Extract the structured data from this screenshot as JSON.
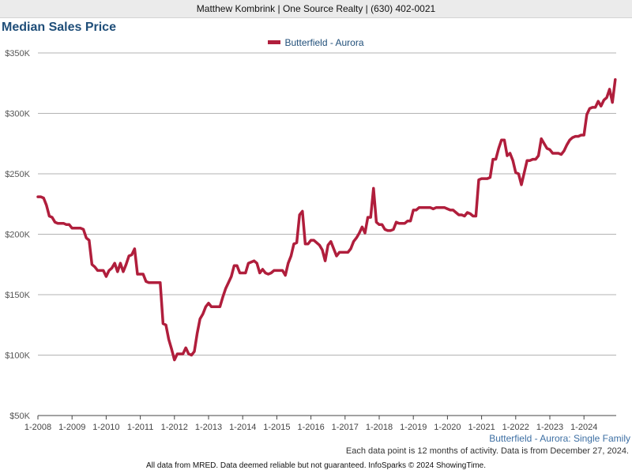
{
  "header": {
    "text": "Matthew Kombrink | One Source Realty | (630) 402-0021"
  },
  "chart_data": {
    "type": "line",
    "title": "Median Sales Price",
    "legend_position": "top-center",
    "grid": true,
    "ylim": [
      50000,
      350000
    ],
    "y_ticks": [
      {
        "value": 50000,
        "label": "$50K"
      },
      {
        "value": 100000,
        "label": "$100K"
      },
      {
        "value": 150000,
        "label": "$150K"
      },
      {
        "value": 200000,
        "label": "$200K"
      },
      {
        "value": 250000,
        "label": "$250K"
      },
      {
        "value": 300000,
        "label": "$300K"
      },
      {
        "value": 350000,
        "label": "$350K"
      }
    ],
    "x_ticks": [
      "1-2008",
      "1-2009",
      "1-2010",
      "1-2011",
      "1-2012",
      "1-2013",
      "1-2014",
      "1-2015",
      "1-2016",
      "1-2017",
      "1-2018",
      "1-2019",
      "1-2020",
      "1-2021",
      "1-2022",
      "1-2023",
      "1-2024"
    ],
    "x_start": "1-2008",
    "series": [
      {
        "name": "Butterfield - Aurora",
        "color": "#b01e3c",
        "values": [
          231000,
          231000,
          230000,
          224000,
          215000,
          214000,
          210000,
          209000,
          209000,
          209000,
          208000,
          208000,
          205000,
          205000,
          205000,
          205000,
          204000,
          197000,
          195000,
          175000,
          173000,
          170000,
          170000,
          170000,
          165000,
          170000,
          172000,
          176000,
          169000,
          176000,
          169000,
          175000,
          182000,
          183000,
          188000,
          167000,
          167000,
          167000,
          161000,
          160000,
          160000,
          160000,
          160000,
          160000,
          126000,
          125000,
          113000,
          105000,
          96000,
          101000,
          101000,
          101000,
          106000,
          101000,
          100000,
          103000,
          118000,
          130000,
          134000,
          140000,
          143000,
          140000,
          140000,
          140000,
          140000,
          148000,
          155000,
          160000,
          165000,
          174000,
          174000,
          168000,
          168000,
          168000,
          176000,
          177000,
          178000,
          176000,
          168000,
          171000,
          168000,
          167000,
          168000,
          170000,
          170000,
          170000,
          170000,
          166000,
          176000,
          182000,
          192000,
          193000,
          216000,
          219000,
          192000,
          192000,
          195000,
          195000,
          193000,
          191000,
          187000,
          178000,
          191000,
          194000,
          188000,
          182000,
          185000,
          185000,
          185000,
          185000,
          188000,
          194000,
          197000,
          201000,
          206000,
          201000,
          214000,
          214000,
          238000,
          210000,
          208000,
          208000,
          204000,
          203000,
          203000,
          204000,
          210000,
          209000,
          209000,
          209000,
          211000,
          211000,
          220000,
          220000,
          222000,
          222000,
          222000,
          222000,
          222000,
          221000,
          222000,
          222000,
          222000,
          222000,
          221000,
          220000,
          220000,
          218000,
          216000,
          216000,
          215000,
          218000,
          217000,
          215000,
          215000,
          245000,
          246000,
          246000,
          246000,
          247000,
          262000,
          262000,
          271000,
          278000,
          278000,
          265000,
          267000,
          261000,
          251000,
          250000,
          241000,
          251000,
          261000,
          261000,
          262000,
          262000,
          265000,
          279000,
          275000,
          271000,
          270000,
          267000,
          267000,
          267000,
          266000,
          269000,
          274000,
          278000,
          280000,
          281000,
          281000,
          282000,
          282000,
          299000,
          304000,
          305000,
          305000,
          310000,
          306000,
          311000,
          313000,
          320000,
          309000,
          328000
        ]
      }
    ]
  },
  "subtitle": "Butterfield - Aurora: Single Family",
  "note": "Each data point is 12 months of activity. Data is from December 27, 2024.",
  "footer": "All data from MRED. Data deemed reliable but not guaranteed. InfoSparks © 2024 ShowingTime."
}
